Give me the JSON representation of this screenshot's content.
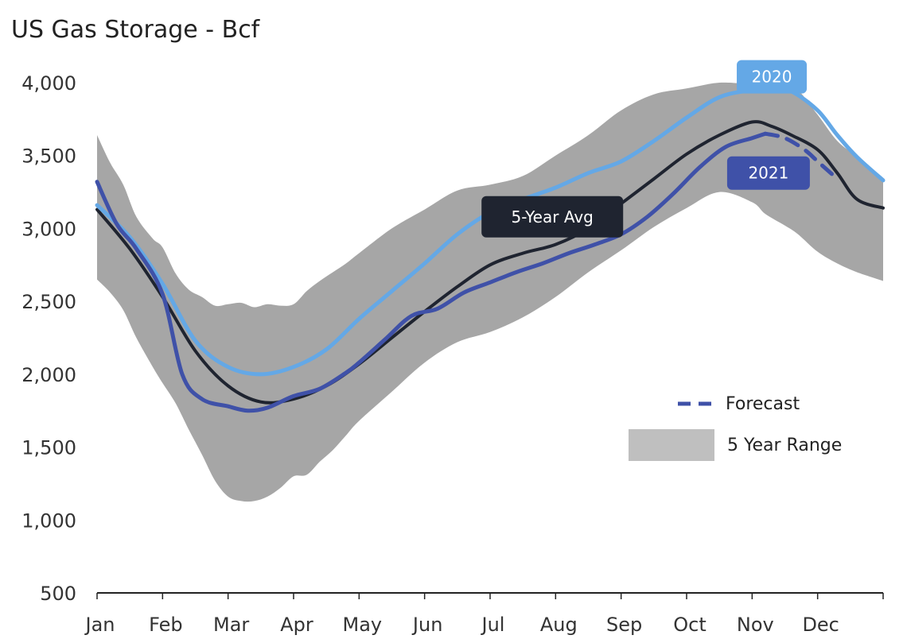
{
  "chart_data": {
    "type": "line",
    "title": "US Gas Storage - Bcf",
    "xlabel": "",
    "ylabel": "",
    "ylim": [
      500,
      4000
    ],
    "yticks": [
      500,
      1000,
      1500,
      2000,
      2500,
      3000,
      3500,
      4000
    ],
    "ytick_labels": [
      "500",
      "1,000",
      "1,500",
      "2,000",
      "2,500",
      "3,000",
      "3,500",
      "4,000"
    ],
    "xlim": [
      0,
      12
    ],
    "month_labels": [
      "Jan",
      "Feb",
      "Mar",
      "Apr",
      "May",
      "Jun",
      "Jul",
      "Aug",
      "Sep",
      "Oct",
      "Nov",
      "Dec"
    ],
    "grid": false,
    "colors": {
      "range": "#a6a6a6",
      "avg": "#1f2430",
      "y2020": "#64a8e6",
      "y2021": "#3f51a8",
      "legend_range": "#bfbfbf"
    },
    "range": {
      "name": "5 Year Range",
      "x": [
        0,
        0.2,
        0.4,
        0.6,
        0.85,
        1.0,
        1.2,
        1.4,
        1.6,
        1.8,
        2.0,
        2.2,
        2.4,
        2.6,
        2.8,
        3.0,
        3.2,
        3.4,
        3.6,
        3.8,
        4.0,
        4.5,
        5.0,
        5.5,
        6.0,
        6.5,
        7.0,
        7.5,
        8.0,
        8.5,
        9.0,
        9.5,
        10.0,
        10.2,
        10.5,
        10.7,
        11.0,
        11.3,
        11.6,
        12.0
      ],
      "upper": [
        3640,
        3450,
        3300,
        3080,
        2930,
        2870,
        2690,
        2580,
        2530,
        2470,
        2480,
        2490,
        2460,
        2480,
        2470,
        2480,
        2570,
        2640,
        2700,
        2760,
        2830,
        3000,
        3130,
        3260,
        3300,
        3360,
        3500,
        3640,
        3810,
        3920,
        3960,
        4000,
        3990,
        4000,
        3980,
        3950,
        3780,
        3600,
        3490,
        3320
      ],
      "lower": [
        2650,
        2560,
        2440,
        2250,
        2050,
        1940,
        1800,
        1620,
        1450,
        1270,
        1160,
        1130,
        1130,
        1160,
        1220,
        1300,
        1310,
        1400,
        1480,
        1580,
        1680,
        1880,
        2080,
        2220,
        2290,
        2390,
        2530,
        2700,
        2850,
        3010,
        3140,
        3250,
        3180,
        3100,
        3020,
        2960,
        2840,
        2760,
        2700,
        2640
      ]
    },
    "series": [
      {
        "name": "5-Year Avg",
        "x": [
          0,
          0.5,
          1.0,
          1.5,
          2.0,
          2.5,
          3.0,
          3.5,
          4.0,
          4.5,
          5.0,
          5.5,
          6.0,
          6.5,
          7.0,
          7.5,
          8.0,
          8.5,
          9.0,
          9.5,
          10.0,
          10.3,
          10.6,
          11.0,
          11.3,
          11.6,
          12.0
        ],
        "values": [
          3130,
          2860,
          2530,
          2160,
          1920,
          1810,
          1830,
          1920,
          2070,
          2250,
          2430,
          2600,
          2750,
          2830,
          2890,
          3000,
          3170,
          3340,
          3510,
          3640,
          3730,
          3700,
          3640,
          3540,
          3380,
          3200,
          3140
        ]
      },
      {
        "name": "2020",
        "x": [
          0,
          0.5,
          1.0,
          1.5,
          2.0,
          2.5,
          3.0,
          3.5,
          4.0,
          4.5,
          5.0,
          5.5,
          6.0,
          6.5,
          7.0,
          7.5,
          8.0,
          8.5,
          9.0,
          9.5,
          10.0,
          10.3,
          10.6,
          11.0,
          11.3,
          11.6,
          12.0
        ],
        "values": [
          3160,
          2940,
          2620,
          2230,
          2050,
          2000,
          2050,
          2170,
          2380,
          2570,
          2760,
          2960,
          3110,
          3200,
          3280,
          3380,
          3460,
          3600,
          3760,
          3900,
          3950,
          3960,
          3940,
          3810,
          3640,
          3490,
          3330
        ]
      },
      {
        "name": "2021",
        "x": [
          0,
          0.3,
          0.6,
          1.0,
          1.3,
          1.6,
          2.0,
          2.3,
          2.6,
          3.0,
          3.4,
          3.8,
          4.0,
          4.4,
          4.8,
          5.2,
          5.6,
          6.0,
          6.4,
          6.8,
          7.2,
          7.6,
          8.0,
          8.4,
          8.8,
          9.2,
          9.6,
          10.0,
          10.2
        ],
        "values": [
          3320,
          3030,
          2860,
          2550,
          2000,
          1830,
          1780,
          1750,
          1770,
          1850,
          1900,
          2010,
          2080,
          2240,
          2400,
          2450,
          2560,
          2630,
          2700,
          2760,
          2830,
          2890,
          2960,
          3080,
          3240,
          3420,
          3560,
          3620,
          3650
        ]
      },
      {
        "name": "Forecast",
        "dashed": true,
        "x": [
          10.2,
          10.5,
          10.8,
          11.0,
          11.3
        ],
        "values": [
          3650,
          3620,
          3540,
          3460,
          3340
        ]
      }
    ],
    "callouts": [
      {
        "text": "2020",
        "series": "2020"
      },
      {
        "text": "2021",
        "series": "2021"
      },
      {
        "text": "5-Year Avg",
        "series": "5-Year Avg"
      }
    ],
    "legend": {
      "placement": "bottom-right",
      "items": [
        {
          "label": "Forecast",
          "style": "dashed-line"
        },
        {
          "label": "5 Year Range",
          "style": "swatch"
        }
      ]
    }
  }
}
